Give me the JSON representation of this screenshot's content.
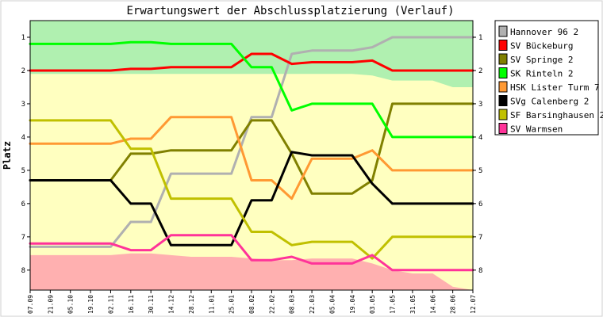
{
  "chart_data": {
    "type": "line",
    "title": "Erwartungswert der Abschlussplatzierung (Verlauf)",
    "ylabel": "Platz",
    "xlabel": "",
    "ylim": [
      8.6,
      0.5
    ],
    "yticks": [
      1,
      2,
      3,
      4,
      5,
      6,
      7,
      8
    ],
    "y_inverted": true,
    "grid": false,
    "legend_position": "right",
    "categories": [
      "07.09",
      "21.09",
      "05.10",
      "19.10",
      "02.11",
      "16.11",
      "30.11",
      "14.12",
      "28.12",
      "11.01",
      "25.01",
      "08.02",
      "22.02",
      "08.03",
      "22.03",
      "05.04",
      "19.04",
      "03.05",
      "17.05",
      "31.05",
      "14.06",
      "28.06",
      "12.07"
    ],
    "bands": {
      "colors": {
        "promotion": "#b0f0b0",
        "middle": "#ffffc0",
        "relegation": "#ffb0b0"
      },
      "promotion_lower": [
        2.1,
        2.1,
        2.1,
        2.1,
        2.1,
        2.1,
        2.1,
        2.1,
        2.1,
        2.1,
        2.1,
        2.1,
        2.1,
        2.1,
        2.1,
        2.1,
        2.1,
        2.15,
        2.3,
        2.3,
        2.3,
        2.5,
        2.5
      ],
      "relegation_upper": [
        7.55,
        7.55,
        7.55,
        7.55,
        7.55,
        7.5,
        7.5,
        7.55,
        7.6,
        7.6,
        7.6,
        7.65,
        7.7,
        7.7,
        7.65,
        7.65,
        7.65,
        7.8,
        8.0,
        8.1,
        8.1,
        8.5,
        8.6
      ]
    },
    "series": [
      {
        "name": "Hannover 96 2",
        "color": "#b0b0b0",
        "values": [
          7.3,
          7.3,
          7.3,
          7.3,
          7.3,
          6.55,
          6.55,
          5.1,
          5.1,
          5.1,
          5.1,
          3.4,
          3.4,
          1.5,
          1.4,
          1.4,
          1.4,
          1.3,
          1.0,
          1.0,
          1.0,
          1.0,
          1.0
        ]
      },
      {
        "name": "SV Bückeburg",
        "color": "#ff0000",
        "values": [
          2.0,
          2.0,
          2.0,
          2.0,
          2.0,
          1.95,
          1.95,
          1.9,
          1.9,
          1.9,
          1.9,
          1.5,
          1.5,
          1.8,
          1.75,
          1.75,
          1.75,
          1.7,
          2.0,
          2.0,
          2.0,
          2.0,
          2.0
        ]
      },
      {
        "name": "SV Springe 2",
        "color": "#808000",
        "values": [
          5.3,
          5.3,
          5.3,
          5.3,
          5.3,
          4.5,
          4.5,
          4.4,
          4.4,
          4.4,
          4.4,
          3.5,
          3.5,
          4.5,
          5.7,
          5.7,
          5.7,
          5.3,
          3.0,
          3.0,
          3.0,
          3.0,
          3.0
        ]
      },
      {
        "name": "SK Rinteln 2",
        "color": "#00ff00",
        "values": [
          1.2,
          1.2,
          1.2,
          1.2,
          1.2,
          1.15,
          1.15,
          1.2,
          1.2,
          1.2,
          1.2,
          1.9,
          1.9,
          3.2,
          3.0,
          3.0,
          3.0,
          3.0,
          4.0,
          4.0,
          4.0,
          4.0,
          4.0
        ]
      },
      {
        "name": "HSK Lister Turm 7",
        "color": "#ff9933",
        "values": [
          4.2,
          4.2,
          4.2,
          4.2,
          4.2,
          4.05,
          4.05,
          3.4,
          3.4,
          3.4,
          3.4,
          5.3,
          5.3,
          5.85,
          4.65,
          4.65,
          4.65,
          4.4,
          5.0,
          5.0,
          5.0,
          5.0,
          5.0
        ]
      },
      {
        "name": "SVg Calenberg 2",
        "color": "#000000",
        "values": [
          5.3,
          5.3,
          5.3,
          5.3,
          5.3,
          6.0,
          6.0,
          7.25,
          7.25,
          7.25,
          7.25,
          5.9,
          5.9,
          4.45,
          4.55,
          4.55,
          4.55,
          5.4,
          6.0,
          6.0,
          6.0,
          6.0,
          6.0
        ]
      },
      {
        "name": "SF Barsinghausen 2",
        "color": "#c0c000",
        "values": [
          3.5,
          3.5,
          3.5,
          3.5,
          3.5,
          4.35,
          4.35,
          5.85,
          5.85,
          5.85,
          5.85,
          6.85,
          6.85,
          7.25,
          7.15,
          7.15,
          7.15,
          7.65,
          7.0,
          7.0,
          7.0,
          7.0,
          7.0
        ]
      },
      {
        "name": "SV Warmsen",
        "color": "#ff3399",
        "values": [
          7.2,
          7.2,
          7.2,
          7.2,
          7.2,
          7.4,
          7.4,
          6.95,
          6.95,
          6.95,
          6.95,
          7.7,
          7.7,
          7.6,
          7.8,
          7.8,
          7.8,
          7.55,
          8.0,
          8.0,
          8.0,
          8.0,
          8.0
        ]
      }
    ]
  }
}
